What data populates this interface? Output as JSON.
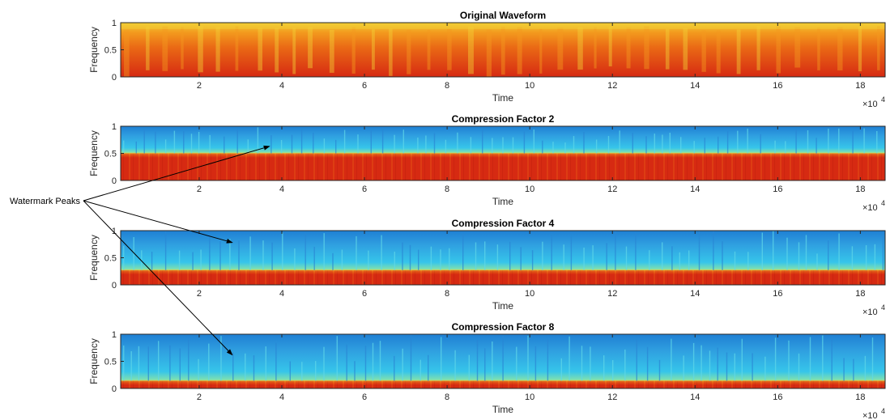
{
  "chart_data": [
    {
      "type": "heatmap",
      "title": "Original Waveform",
      "xlabel": "Time",
      "ylabel": "Frequency",
      "x_multiplier": "×10",
      "x_multiplier_exp": "4",
      "xlim": [
        0.1,
        18.6
      ],
      "ylim": [
        0,
        1
      ],
      "xticks": [
        "2",
        "4",
        "6",
        "8",
        "10",
        "12",
        "14",
        "16",
        "18"
      ],
      "yticks": [
        "0",
        "0.5",
        "1"
      ],
      "colormap": "jet",
      "cutoff_frequency": 1.0
    },
    {
      "type": "heatmap",
      "title": "Compression Factor 2",
      "xlabel": "Time",
      "ylabel": "Frequency",
      "x_multiplier": "×10",
      "x_multiplier_exp": "4",
      "xlim": [
        0.1,
        18.6
      ],
      "ylim": [
        0,
        1
      ],
      "xticks": [
        "2",
        "4",
        "6",
        "8",
        "10",
        "12",
        "14",
        "16",
        "18"
      ],
      "yticks": [
        "0",
        "0.5",
        "1"
      ],
      "colormap": "jet",
      "cutoff_frequency": 0.5
    },
    {
      "type": "heatmap",
      "title": "Compression Factor 4",
      "xlabel": "Time",
      "ylabel": "Frequency",
      "x_multiplier": "×10",
      "x_multiplier_exp": "4",
      "xlim": [
        0.1,
        18.6
      ],
      "ylim": [
        0,
        1
      ],
      "xticks": [
        "2",
        "4",
        "6",
        "8",
        "10",
        "12",
        "14",
        "16",
        "18"
      ],
      "yticks": [
        "0",
        "0.5",
        "1"
      ],
      "colormap": "jet",
      "cutoff_frequency": 0.27
    },
    {
      "type": "heatmap",
      "title": "Compression Factor 8",
      "xlabel": "Time",
      "ylabel": "Frequency",
      "x_multiplier": "×10",
      "x_multiplier_exp": "4",
      "xlim": [
        0.1,
        18.6
      ],
      "ylim": [
        0,
        1
      ],
      "xticks": [
        "2",
        "4",
        "6",
        "8",
        "10",
        "12",
        "14",
        "16",
        "18"
      ],
      "yticks": [
        "0",
        "0.5",
        "1"
      ],
      "colormap": "jet",
      "cutoff_frequency": 0.14
    }
  ],
  "annotation": {
    "label": "Watermark Peaks",
    "targets": [
      {
        "panel": 1,
        "x": 3.7,
        "y": 0.63
      },
      {
        "panel": 2,
        "x": 2.8,
        "y": 0.78
      },
      {
        "panel": 3,
        "x": 2.8,
        "y": 0.62
      }
    ]
  },
  "colors": {
    "red": "#d62a12",
    "orange": "#ea6a15",
    "yellow": "#f1cf36",
    "cyan": "#36c5ea",
    "blue": "#1f7fd3",
    "axis": "#262626"
  }
}
